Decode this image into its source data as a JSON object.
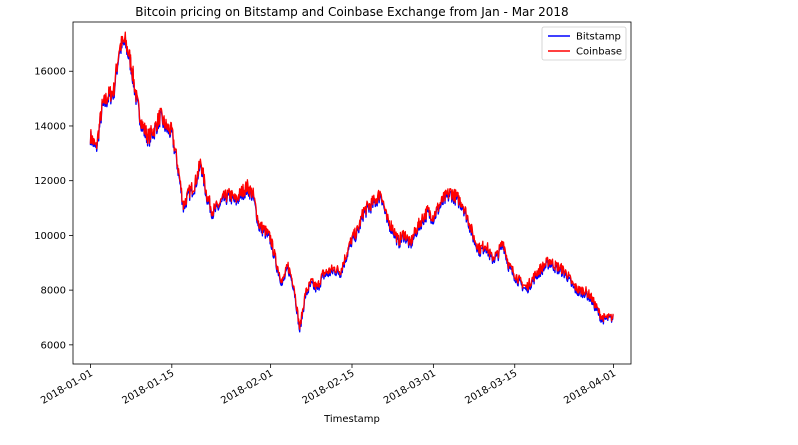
{
  "chart_data": {
    "type": "line",
    "title": "Bitcoin pricing on Bitstamp and Coinbase Exchange from Jan - Mar 2018",
    "xlabel": "Timestamp",
    "ylabel": "",
    "ylim": [
      5300,
      17800
    ],
    "xlim": [
      "2017-12-29",
      "2018-04-04"
    ],
    "yticks": [
      6000,
      8000,
      10000,
      12000,
      14000,
      16000
    ],
    "xticks": [
      "2018-01-01",
      "2018-01-15",
      "2018-02-01",
      "2018-02-15",
      "2018-03-01",
      "2018-03-15",
      "2018-04-01"
    ],
    "grid": false,
    "legend_position": "upper-right",
    "series": [
      {
        "name": "Bitstamp",
        "color": "#0000ff",
        "x": [
          "2018-01-01",
          "2018-01-02",
          "2018-01-03",
          "2018-01-04",
          "2018-01-05",
          "2018-01-06",
          "2018-01-07",
          "2018-01-08",
          "2018-01-09",
          "2018-01-10",
          "2018-01-11",
          "2018-01-12",
          "2018-01-13",
          "2018-01-14",
          "2018-01-15",
          "2018-01-16",
          "2018-01-17",
          "2018-01-18",
          "2018-01-19",
          "2018-01-20",
          "2018-01-21",
          "2018-01-22",
          "2018-01-23",
          "2018-01-24",
          "2018-01-25",
          "2018-01-26",
          "2018-01-27",
          "2018-01-28",
          "2018-01-29",
          "2018-01-30",
          "2018-01-31",
          "2018-02-01",
          "2018-02-02",
          "2018-02-03",
          "2018-02-04",
          "2018-02-05",
          "2018-02-06",
          "2018-02-07",
          "2018-02-08",
          "2018-02-09",
          "2018-02-10",
          "2018-02-11",
          "2018-02-12",
          "2018-02-13",
          "2018-02-14",
          "2018-02-15",
          "2018-02-16",
          "2018-02-17",
          "2018-02-18",
          "2018-02-19",
          "2018-02-20",
          "2018-02-21",
          "2018-02-22",
          "2018-02-23",
          "2018-02-24",
          "2018-02-25",
          "2018-02-26",
          "2018-02-27",
          "2018-02-28",
          "2018-03-01",
          "2018-03-02",
          "2018-03-03",
          "2018-03-04",
          "2018-03-05",
          "2018-03-06",
          "2018-03-07",
          "2018-03-08",
          "2018-03-09",
          "2018-03-10",
          "2018-03-11",
          "2018-03-12",
          "2018-03-13",
          "2018-03-14",
          "2018-03-15",
          "2018-03-16",
          "2018-03-17",
          "2018-03-18",
          "2018-03-19",
          "2018-03-20",
          "2018-03-21",
          "2018-03-22",
          "2018-03-23",
          "2018-03-24",
          "2018-03-25",
          "2018-03-26",
          "2018-03-27",
          "2018-03-28",
          "2018-03-29",
          "2018-03-30",
          "2018-03-31"
        ],
        "values": [
          13600,
          13100,
          14600,
          15000,
          15200,
          16800,
          17000,
          16200,
          14800,
          13900,
          13500,
          13800,
          14300,
          13900,
          13700,
          12500,
          11000,
          11500,
          11800,
          12600,
          11400,
          10800,
          11000,
          11300,
          11400,
          11200,
          11500,
          11700,
          11400,
          10300,
          10100,
          9800,
          8900,
          8200,
          8800,
          8100,
          6500,
          7800,
          8200,
          8000,
          8500,
          8600,
          8700,
          8600,
          9200,
          9800,
          10100,
          10800,
          11000,
          11200,
          11500,
          10500,
          10200,
          9700,
          10000,
          9600,
          10100,
          10500,
          10800,
          10600,
          11000,
          11300,
          11500,
          11300,
          11100,
          10500,
          9800,
          9400,
          9600,
          9100,
          9200,
          9700,
          8800,
          8500,
          8200,
          8000,
          8300,
          8600,
          8800,
          9000,
          8800,
          8700,
          8500,
          8100,
          7900,
          7900,
          7700,
          7300,
          6900,
          6950
        ]
      },
      {
        "name": "Coinbase",
        "color": "#ff0000",
        "x": [
          "2018-01-01",
          "2018-01-02",
          "2018-01-03",
          "2018-01-04",
          "2018-01-05",
          "2018-01-06",
          "2018-01-07",
          "2018-01-08",
          "2018-01-09",
          "2018-01-10",
          "2018-01-11",
          "2018-01-12",
          "2018-01-13",
          "2018-01-14",
          "2018-01-15",
          "2018-01-16",
          "2018-01-17",
          "2018-01-18",
          "2018-01-19",
          "2018-01-20",
          "2018-01-21",
          "2018-01-22",
          "2018-01-23",
          "2018-01-24",
          "2018-01-25",
          "2018-01-26",
          "2018-01-27",
          "2018-01-28",
          "2018-01-29",
          "2018-01-30",
          "2018-01-31",
          "2018-02-01",
          "2018-02-02",
          "2018-02-03",
          "2018-02-04",
          "2018-02-05",
          "2018-02-06",
          "2018-02-07",
          "2018-02-08",
          "2018-02-09",
          "2018-02-10",
          "2018-02-11",
          "2018-02-12",
          "2018-02-13",
          "2018-02-14",
          "2018-02-15",
          "2018-02-16",
          "2018-02-17",
          "2018-02-18",
          "2018-02-19",
          "2018-02-20",
          "2018-02-21",
          "2018-02-22",
          "2018-02-23",
          "2018-02-24",
          "2018-02-25",
          "2018-02-26",
          "2018-02-27",
          "2018-02-28",
          "2018-03-01",
          "2018-03-02",
          "2018-03-03",
          "2018-03-04",
          "2018-03-05",
          "2018-03-06",
          "2018-03-07",
          "2018-03-08",
          "2018-03-09",
          "2018-03-10",
          "2018-03-11",
          "2018-03-12",
          "2018-03-13",
          "2018-03-14",
          "2018-03-15",
          "2018-03-16",
          "2018-03-17",
          "2018-03-18",
          "2018-03-19",
          "2018-03-20",
          "2018-03-21",
          "2018-03-22",
          "2018-03-23",
          "2018-03-24",
          "2018-03-25",
          "2018-03-26",
          "2018-03-27",
          "2018-03-28",
          "2018-03-29",
          "2018-03-30",
          "2018-03-31"
        ],
        "values": [
          13650,
          13200,
          14700,
          15100,
          15300,
          16900,
          17100,
          16300,
          14900,
          14000,
          13600,
          13900,
          14400,
          14000,
          13800,
          12600,
          11100,
          11600,
          11900,
          12700,
          11500,
          10900,
          11100,
          11400,
          11500,
          11300,
          11600,
          11800,
          11500,
          10400,
          10200,
          9900,
          9000,
          8300,
          8900,
          8200,
          6600,
          7900,
          8300,
          8100,
          8600,
          8700,
          8800,
          8700,
          9300,
          9900,
          10200,
          10900,
          11100,
          11300,
          11600,
          10600,
          10300,
          9800,
          10100,
          9700,
          10200,
          10600,
          10900,
          10700,
          11100,
          11400,
          11600,
          11400,
          11200,
          10600,
          9900,
          9500,
          9700,
          9200,
          9300,
          9800,
          8900,
          8600,
          8300,
          8100,
          8400,
          8700,
          8900,
          9100,
          8900,
          8800,
          8600,
          8200,
          8000,
          8000,
          7800,
          7400,
          7000,
          7000
        ]
      }
    ]
  }
}
